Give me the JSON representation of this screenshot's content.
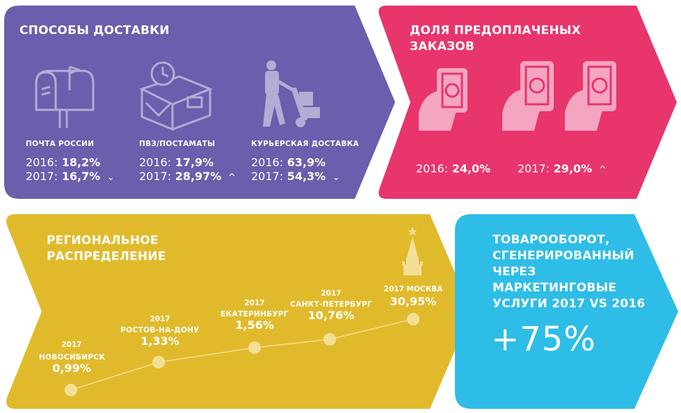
{
  "delivery": {
    "title": "СПОСОБЫ ДОСТАВКИ",
    "methods": [
      {
        "label": "ПОЧТА РОССИИ",
        "y2016_label": "2016:",
        "y2016_value": "18,2%",
        "y2017_label": "2017:",
        "y2017_value": "16,7%",
        "trend": "⌄"
      },
      {
        "label": "ПВЗ/ПОСТАМАТЫ",
        "y2016_label": "2016:",
        "y2016_value": "17,9%",
        "y2017_label": "2017:",
        "y2017_value": "28,97%",
        "trend": "^"
      },
      {
        "label": "КУРЬЕРСКАЯ ДОСТАВКА",
        "y2016_label": "2016:",
        "y2016_value": "63,9%",
        "y2017_label": "2017:",
        "y2017_value": "54,3%",
        "trend": "⌄"
      }
    ]
  },
  "prepaid": {
    "title_line1": "ДОЛЯ ПРЕДОПЛАЧЕНЫХ",
    "title_line2": "ЗАКАЗОВ",
    "y2016_label": "2016:",
    "y2016_value": "24,0%",
    "y2017_label": "2017:",
    "y2017_value": "29,0%",
    "trend": "^"
  },
  "regional": {
    "title_line1": "РЕГИОНАЛЬНОЕ",
    "title_line2": "РАСПРЕДЕЛЕНИЕ",
    "cities": [
      {
        "year": "2017",
        "name": "НОВОСИБИРСК",
        "value": "0,99%"
      },
      {
        "year": "2017",
        "name": "РОСТОВ-НА-ДОНУ",
        "value": "1,33%"
      },
      {
        "year": "2017",
        "name": "ЕКАТЕРИНБУРГ",
        "value": "1,56%"
      },
      {
        "year": "2017",
        "name": "САНКТ-ПЕТЕРБУРГ",
        "value": "10,76%"
      },
      {
        "year": "2017 МОСКВА",
        "name": "",
        "value": "30,95%"
      }
    ]
  },
  "turnover": {
    "line1": "ТОВАРООБОРОТ,",
    "line2": "СГЕНЕРИРОВАННЫЙ",
    "line3": "ЧЕРЕЗ",
    "line4": "МАРКЕТИНГОВЫЕ",
    "line5": "УСЛУГИ 2017 VS 2016",
    "value": "+75%"
  },
  "colors": {
    "purple": "#6a5ead",
    "pink": "#e8356c",
    "yellow": "#e1ba2c",
    "cyan": "#2dbde6",
    "icon_light": "#b3acd5",
    "pink_light": "#f4a5c1",
    "yellow_light": "#f4df96"
  },
  "icons": [
    "mailbox-icon",
    "parcel-clock-icon",
    "courier-icon",
    "phone-money-icon",
    "kremlin-tower-icon"
  ]
}
